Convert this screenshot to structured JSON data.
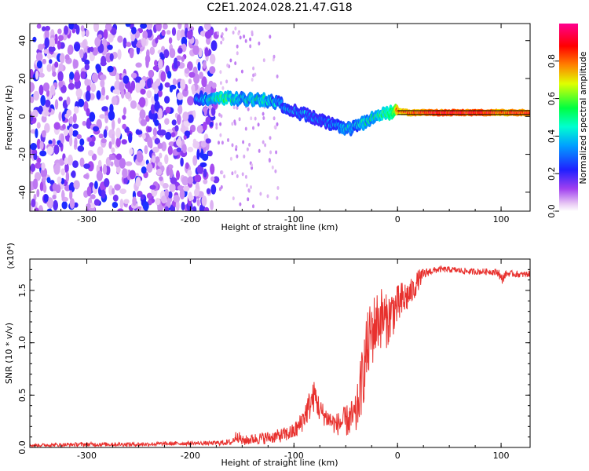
{
  "title": "C2E1.2024.028.21.47.G18",
  "colors": {
    "snr_line": "#e8312e",
    "frame": "#000000",
    "background": "#ffffff",
    "reference_line": "#000000"
  },
  "chart_data": [
    {
      "type": "heatmap",
      "xlabel": "Height of straight line (km)",
      "ylabel": "Frequency (Hz)",
      "xlim": [
        -355,
        128
      ],
      "ylim": [
        -50,
        49
      ],
      "x_ticks": [
        -300,
        -200,
        -100,
        0,
        100
      ],
      "y_ticks": [
        -40,
        -20,
        0,
        20,
        40
      ],
      "colorbar": {
        "label": "Normalized spectral amplitude",
        "range": [
          0,
          1
        ],
        "ticks": [
          "0.0",
          "0.2",
          "0.4",
          "0.6",
          "0.8"
        ],
        "tick_values": [
          0,
          0.2,
          0.4,
          0.6,
          0.8
        ],
        "colormap": "rainbow (white → purple → blue → cyan → green → yellow → red → magenta)"
      },
      "reference_line": {
        "y": [
          1,
          3
        ],
        "x_range": [
          0,
          128
        ]
      },
      "signal_track": {
        "x": [
          -195,
          -170,
          -150,
          -130,
          -115,
          -100,
          -90,
          -80,
          -70,
          -60,
          -50,
          -42,
          -35,
          -25,
          -15,
          -5,
          0,
          10,
          40,
          80,
          100,
          128
        ],
        "y": [
          8,
          10,
          9,
          9,
          7,
          3,
          1,
          -1,
          -3,
          -5,
          -7,
          -6,
          -4,
          -1,
          1,
          2,
          3,
          2,
          2,
          2,
          2,
          2
        ],
        "amplitude": [
          0.35,
          0.55,
          0.45,
          0.5,
          0.4,
          0.35,
          0.35,
          0.3,
          0.35,
          0.4,
          0.45,
          0.4,
          0.45,
          0.5,
          0.55,
          0.6,
          0.85,
          0.9,
          0.95,
          0.95,
          0.9,
          0.95
        ]
      },
      "noise_region": {
        "x_range": [
          -355,
          -175
        ],
        "y_range": [
          -50,
          49
        ],
        "typical_amplitude": 0.2
      }
    },
    {
      "type": "line",
      "xlabel": "Height of straight line (km)",
      "ylabel": "SNR (10 * v/v)",
      "y_scale_label": "(x10⁴)",
      "xlim": [
        -355,
        128
      ],
      "ylim": [
        0,
        1.8
      ],
      "x_ticks": [
        -300,
        -200,
        -100,
        0,
        100
      ],
      "y_ticks": [
        0.0,
        0.5,
        1.0,
        1.5
      ],
      "y_tick_labels": [
        "0.0",
        "0.5",
        "1.0",
        "1.5"
      ],
      "series": [
        {
          "x": [
            -355,
            -300,
            -250,
            -200,
            -180,
            -160,
            -155,
            -150,
            -140,
            -130,
            -120,
            -110,
            -100,
            -95,
            -90,
            -85,
            -80,
            -75,
            -70,
            -60,
            -50,
            -40,
            -35,
            -30,
            -25,
            -20,
            -15,
            -10,
            -5,
            0,
            5,
            10,
            15,
            20,
            25,
            30,
            40,
            50,
            60,
            70,
            80,
            90,
            98,
            100,
            105,
            110,
            120,
            128
          ],
          "y": [
            0.02,
            0.03,
            0.03,
            0.04,
            0.04,
            0.05,
            0.12,
            0.06,
            0.08,
            0.09,
            0.1,
            0.12,
            0.15,
            0.2,
            0.3,
            0.4,
            0.5,
            0.35,
            0.3,
            0.22,
            0.25,
            0.3,
            0.6,
            0.9,
            1.1,
            1.2,
            1.25,
            1.2,
            1.3,
            1.35,
            1.4,
            1.45,
            1.5,
            1.6,
            1.65,
            1.68,
            1.7,
            1.7,
            1.69,
            1.68,
            1.68,
            1.68,
            1.67,
            1.6,
            1.66,
            1.66,
            1.65,
            1.66
          ],
          "noise_amplitude": [
            0.015,
            0.02,
            0.02,
            0.02,
            0.02,
            0.03,
            0.06,
            0.05,
            0.05,
            0.06,
            0.06,
            0.07,
            0.08,
            0.1,
            0.12,
            0.15,
            0.15,
            0.12,
            0.1,
            0.1,
            0.15,
            0.2,
            0.3,
            0.35,
            0.35,
            0.3,
            0.3,
            0.25,
            0.25,
            0.2,
            0.2,
            0.15,
            0.12,
            0.1,
            0.06,
            0.04,
            0.03,
            0.03,
            0.03,
            0.03,
            0.03,
            0.03,
            0.04,
            0.06,
            0.03,
            0.03,
            0.03,
            0.03
          ]
        }
      ]
    }
  ]
}
